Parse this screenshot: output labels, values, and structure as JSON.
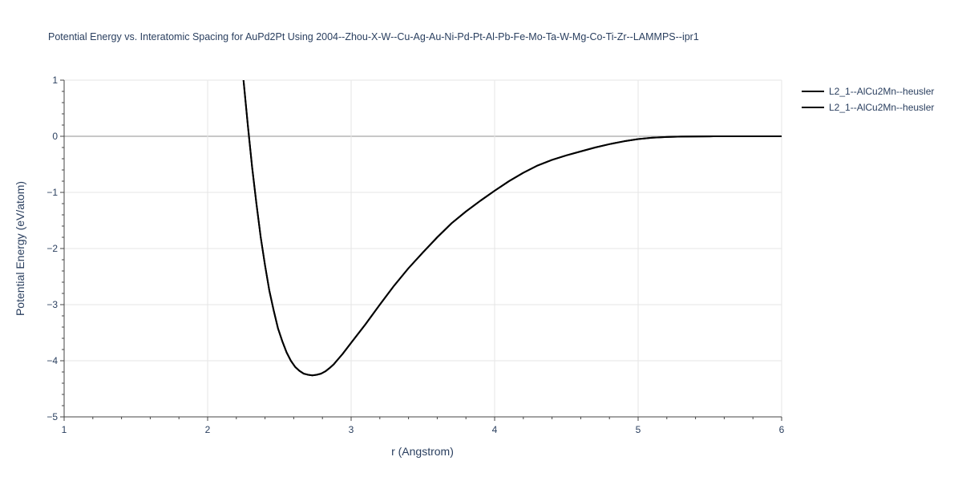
{
  "chart_data": {
    "type": "line",
    "title": "Potential Energy vs. Interatomic Spacing for AuPd2Pt Using 2004--Zhou-X-W--Cu-Ag-Au-Ni-Pd-Pt-Al-Pb-Fe-Mo-Ta-W-Mg-Co-Ti-Zr--LAMMPS--ipr1",
    "xlabel": "r (Angstrom)",
    "ylabel": "Potential Energy (eV/atom)",
    "xlim": [
      1,
      6
    ],
    "ylim": [
      -5,
      1
    ],
    "x_ticks": [
      "1",
      "2",
      "3",
      "4",
      "5",
      "6"
    ],
    "y_ticks": [
      "1",
      "0",
      "−1",
      "−2",
      "−3",
      "−4",
      "−5"
    ],
    "grid": true,
    "legend_position": "top-right",
    "series_color": "#000000",
    "series": [
      {
        "name": "L2_1--AlCu2Mn--heusler",
        "x": [
          2.25,
          2.28,
          2.31,
          2.34,
          2.37,
          2.4,
          2.43,
          2.46,
          2.49,
          2.52,
          2.55,
          2.58,
          2.61,
          2.64,
          2.67,
          2.7,
          2.73,
          2.76,
          2.79,
          2.82,
          2.85,
          2.88,
          2.91,
          2.94,
          3.0,
          3.1,
          3.2,
          3.3,
          3.4,
          3.5,
          3.6,
          3.7,
          3.8,
          3.9,
          4.0,
          4.1,
          4.2,
          4.3,
          4.4,
          4.5,
          4.6,
          4.7,
          4.8,
          4.9,
          5.0,
          5.1,
          5.2,
          5.3,
          5.4,
          5.5,
          5.6,
          5.8,
          6.0
        ],
        "y": [
          1.0,
          0.2,
          -0.55,
          -1.2,
          -1.8,
          -2.3,
          -2.75,
          -3.1,
          -3.42,
          -3.65,
          -3.85,
          -4.0,
          -4.11,
          -4.18,
          -4.23,
          -4.25,
          -4.26,
          -4.25,
          -4.23,
          -4.19,
          -4.13,
          -4.06,
          -3.97,
          -3.88,
          -3.68,
          -3.35,
          -3.0,
          -2.66,
          -2.35,
          -2.07,
          -1.8,
          -1.55,
          -1.34,
          -1.15,
          -0.97,
          -0.8,
          -0.65,
          -0.52,
          -0.42,
          -0.34,
          -0.27,
          -0.2,
          -0.14,
          -0.09,
          -0.05,
          -0.025,
          -0.012,
          -0.006,
          -0.003,
          -0.001,
          0.0,
          0.0,
          0.0
        ]
      },
      {
        "name": "L2_1--AlCu2Mn--heusler",
        "x": [
          2.25,
          2.28,
          2.31,
          2.34,
          2.37,
          2.4,
          2.43,
          2.46,
          2.49,
          2.52,
          2.55,
          2.58,
          2.61,
          2.64,
          2.67,
          2.7,
          2.73,
          2.76,
          2.79,
          2.82,
          2.85,
          2.88,
          2.91,
          2.94,
          3.0,
          3.1,
          3.2,
          3.3,
          3.4,
          3.5,
          3.6,
          3.7,
          3.8,
          3.9,
          4.0,
          4.1,
          4.2,
          4.3,
          4.4,
          4.5,
          4.6,
          4.7,
          4.8,
          4.9,
          5.0,
          5.1,
          5.2,
          5.3,
          5.4,
          5.5,
          5.6,
          5.8,
          6.0
        ],
        "y": [
          1.0,
          0.2,
          -0.55,
          -1.2,
          -1.8,
          -2.3,
          -2.75,
          -3.1,
          -3.42,
          -3.65,
          -3.85,
          -4.0,
          -4.11,
          -4.18,
          -4.23,
          -4.25,
          -4.26,
          -4.25,
          -4.23,
          -4.19,
          -4.13,
          -4.06,
          -3.97,
          -3.88,
          -3.68,
          -3.35,
          -3.0,
          -2.66,
          -2.35,
          -2.07,
          -1.8,
          -1.55,
          -1.34,
          -1.15,
          -0.97,
          -0.8,
          -0.65,
          -0.52,
          -0.42,
          -0.34,
          -0.27,
          -0.2,
          -0.14,
          -0.09,
          -0.05,
          -0.025,
          -0.012,
          -0.006,
          -0.003,
          -0.001,
          0.0,
          0.0,
          0.0
        ]
      }
    ]
  }
}
